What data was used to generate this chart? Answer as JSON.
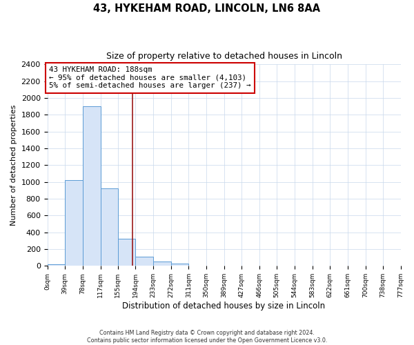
{
  "title": "43, HYKEHAM ROAD, LINCOLN, LN6 8AA",
  "subtitle": "Size of property relative to detached houses in Lincoln",
  "xlabel": "Distribution of detached houses by size in Lincoln",
  "ylabel": "Number of detached properties",
  "bin_edges": [
    0,
    39,
    78,
    117,
    155,
    194,
    233,
    272,
    311,
    350,
    389,
    427,
    466,
    505,
    544,
    583,
    622,
    661,
    700,
    738,
    777
  ],
  "bin_labels": [
    "0sqm",
    "39sqm",
    "78sqm",
    "117sqm",
    "155sqm",
    "194sqm",
    "233sqm",
    "272sqm",
    "311sqm",
    "350sqm",
    "389sqm",
    "427sqm",
    "466sqm",
    "505sqm",
    "544sqm",
    "583sqm",
    "622sqm",
    "661sqm",
    "700sqm",
    "738sqm",
    "777sqm"
  ],
  "counts": [
    20,
    1020,
    1900,
    920,
    320,
    110,
    55,
    30,
    0,
    0,
    0,
    0,
    0,
    0,
    0,
    0,
    0,
    0,
    0,
    0
  ],
  "bar_facecolor": "#d6e4f7",
  "bar_edgecolor": "#5b9bd5",
  "vline_x": 188,
  "vline_color": "#9b1a1a",
  "annotation_text": "43 HYKEHAM ROAD: 188sqm\n← 95% of detached houses are smaller (4,103)\n5% of semi-detached houses are larger (237) →",
  "annotation_box_edgecolor": "#cc0000",
  "annotation_box_facecolor": "#ffffff",
  "ylim": [
    0,
    2400
  ],
  "yticks": [
    0,
    200,
    400,
    600,
    800,
    1000,
    1200,
    1400,
    1600,
    1800,
    2000,
    2200,
    2400
  ],
  "grid_color": "#c8d8eb",
  "background_color": "#ffffff",
  "footer_line1": "Contains HM Land Registry data © Crown copyright and database right 2024.",
  "footer_line2": "Contains public sector information licensed under the Open Government Licence v3.0."
}
